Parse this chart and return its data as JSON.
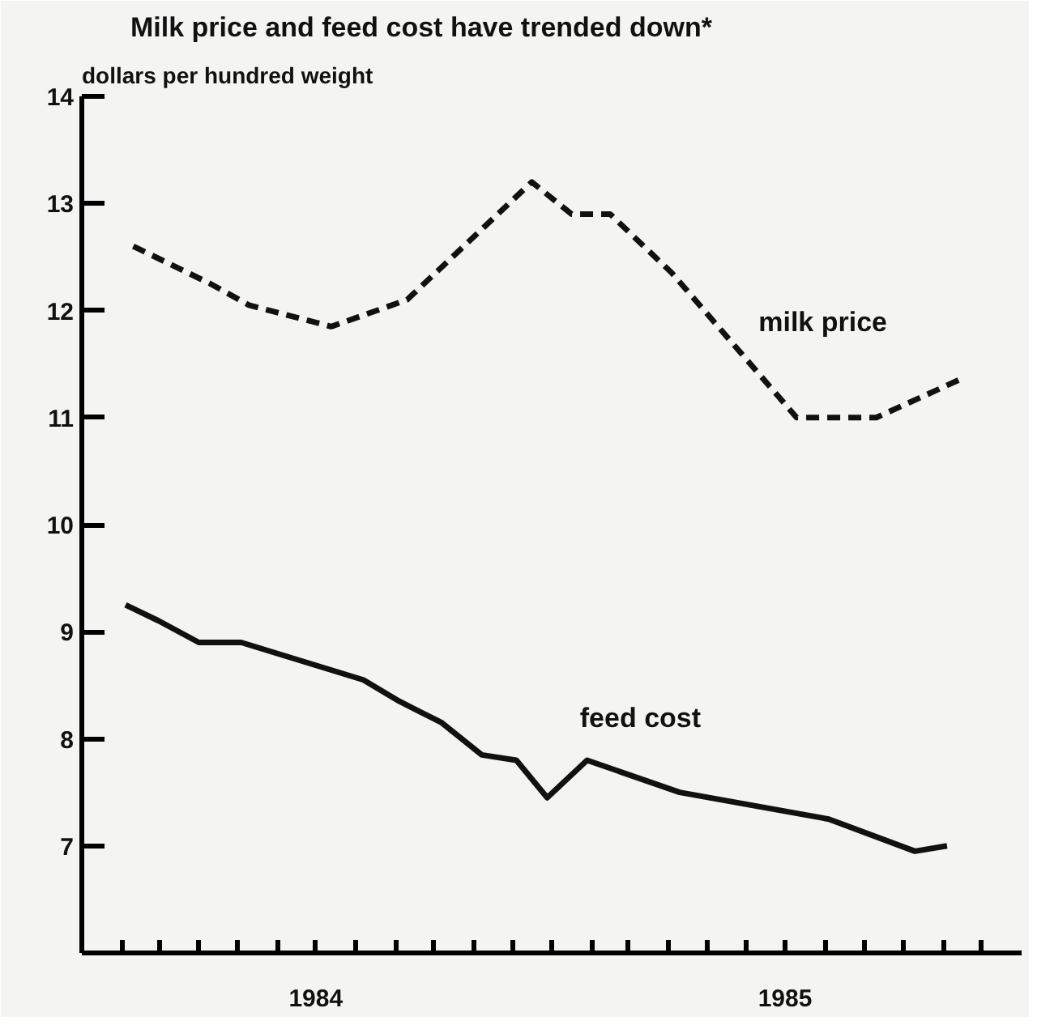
{
  "chart_data": {
    "type": "line",
    "title": "Milk price and feed cost have trended down*",
    "ylabel": "dollars per hundred weight",
    "xlim": [
      "1984-01-01",
      "1986-01-01"
    ],
    "xticks": [
      {
        "value": "1984-02-01",
        "label": null
      },
      {
        "value": "1984-03-01",
        "label": null
      },
      {
        "value": "1984-04-01",
        "label": null
      },
      {
        "value": "1984-05-01",
        "label": null
      },
      {
        "value": "1984-06-01",
        "label": null
      },
      {
        "value": "1984-07-01",
        "label": "1984"
      },
      {
        "value": "1984-08-01",
        "label": null
      },
      {
        "value": "1984-09-01",
        "label": null
      },
      {
        "value": "1984-10-01",
        "label": null
      },
      {
        "value": "1984-11-01",
        "label": null
      },
      {
        "value": "1984-12-01",
        "label": null
      },
      {
        "value": "1985-01-01",
        "label": null
      },
      {
        "value": "1985-02-01",
        "label": null
      },
      {
        "value": "1985-03-01",
        "label": null
      },
      {
        "value": "1985-04-01",
        "label": null
      },
      {
        "value": "1985-05-01",
        "label": null
      },
      {
        "value": "1985-06-01",
        "label": null
      },
      {
        "value": "1985-07-01",
        "label": "1985"
      },
      {
        "value": "1985-08-01",
        "label": null
      },
      {
        "value": "1985-09-01",
        "label": null
      },
      {
        "value": "1985-10-01",
        "label": null
      },
      {
        "value": "1985-11-01",
        "label": null
      },
      {
        "value": "1985-12-01",
        "label": null
      }
    ],
    "ylim": [
      6,
      14
    ],
    "yticks": [
      7,
      8,
      9,
      10,
      11,
      12,
      13,
      14
    ],
    "grid": false,
    "marker": "none",
    "series": [
      {
        "name": "milk price",
        "color": "#111111",
        "line_style": "dashed",
        "x": [
          "1984-02-10",
          "1984-04-10",
          "1984-05-10",
          "1984-07-13",
          "1984-09-10",
          "1984-12-16",
          "1985-01-16",
          "1985-02-15",
          "1985-04-04",
          "1985-07-10",
          "1985-09-10",
          "1985-11-13"
        ],
        "values": [
          12.6,
          12.25,
          12.05,
          11.85,
          12.1,
          13.2,
          12.9,
          12.9,
          12.35,
          11.0,
          11.0,
          11.35
        ]
      },
      {
        "name": "feed cost",
        "color": "#111111",
        "line_style": "solid",
        "x": [
          "1984-02-04",
          "1984-03-01",
          "1984-04-01",
          "1984-05-04",
          "1984-08-07",
          "1984-09-04",
          "1984-10-07",
          "1984-11-07",
          "1984-12-04",
          "1984-12-28",
          "1985-01-28",
          "1985-04-10",
          "1985-08-04",
          "1985-10-10",
          "1985-11-04"
        ],
        "values": [
          9.25,
          9.1,
          8.9,
          8.9,
          8.55,
          8.35,
          8.15,
          7.85,
          7.8,
          7.45,
          7.8,
          7.5,
          7.25,
          6.95,
          7.0
        ]
      }
    ]
  }
}
